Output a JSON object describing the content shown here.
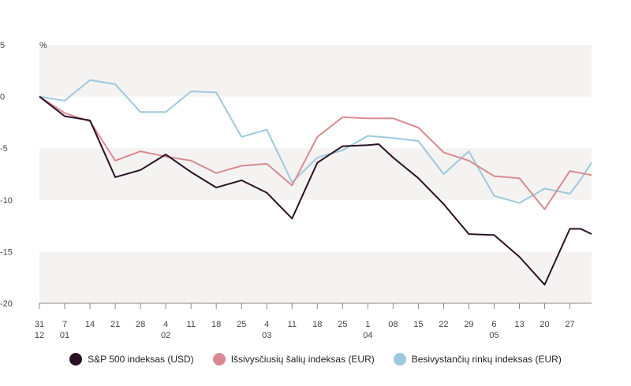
{
  "chart_data": {
    "type": "line",
    "unit_label": "%",
    "ylim": [
      -20,
      5
    ],
    "yticks": [
      5,
      0,
      -5,
      -10,
      -15,
      -20
    ],
    "ytick_labels": [
      "5",
      "0",
      "-5",
      "-10",
      "-15",
      "-20"
    ],
    "x_dates": [
      "2024-12-31",
      "2025-01-07",
      "2025-01-14",
      "2025-01-21",
      "2025-01-28",
      "2025-02-04",
      "2025-02-11",
      "2025-02-18",
      "2025-02-25",
      "2025-03-04",
      "2025-03-11",
      "2025-03-18",
      "2025-03-25",
      "2025-04-01",
      "2025-04-08",
      "2025-04-15",
      "2025-04-22",
      "2025-04-29",
      "2025-05-06",
      "2025-05-13",
      "2025-05-20",
      "2025-05-27",
      "2025-06-02"
    ],
    "xtick_labels": [
      {
        "day": "31",
        "month": "12"
      },
      {
        "day": "7",
        "month": "01"
      },
      {
        "day": "14",
        "month": ""
      },
      {
        "day": "21",
        "month": ""
      },
      {
        "day": "28",
        "month": ""
      },
      {
        "day": "4",
        "month": "02"
      },
      {
        "day": "11",
        "month": ""
      },
      {
        "day": "18",
        "month": ""
      },
      {
        "day": "25",
        "month": ""
      },
      {
        "day": "4",
        "month": "03"
      },
      {
        "day": "11",
        "month": ""
      },
      {
        "day": "18",
        "month": ""
      },
      {
        "day": "25",
        "month": ""
      },
      {
        "day": "1",
        "month": "04"
      },
      {
        "day": "08",
        "month": ""
      },
      {
        "day": "15",
        "month": ""
      },
      {
        "day": "22",
        "month": ""
      },
      {
        "day": "29",
        "month": ""
      },
      {
        "day": "6",
        "month": "05"
      },
      {
        "day": "13",
        "month": ""
      },
      {
        "day": "20",
        "month": ""
      },
      {
        "day": "27",
        "month": ""
      }
    ],
    "series": [
      {
        "name": "S&P 500 indeksas (USD)",
        "color": "#2a0f24",
        "x": [
          "2024-12-31",
          "2025-01-07",
          "2025-01-14",
          "2025-01-21",
          "2025-01-28",
          "2025-02-04",
          "2025-02-11",
          "2025-02-18",
          "2025-02-25",
          "2025-03-04",
          "2025-03-11",
          "2025-03-18",
          "2025-03-25",
          "2025-04-01",
          "2025-04-04",
          "2025-04-08",
          "2025-04-15",
          "2025-04-22",
          "2025-04-29",
          "2025-05-06",
          "2025-05-13",
          "2025-05-20",
          "2025-05-27",
          "2025-05-30",
          "2025-06-02"
        ],
        "values": [
          0,
          -1.9,
          -2.3,
          -7.8,
          -7.1,
          -5.6,
          -7.3,
          -8.8,
          -8.1,
          -9.3,
          -11.8,
          -6.4,
          -4.8,
          -4.7,
          -4.6,
          -5.9,
          -7.9,
          -10.4,
          -13.3,
          -13.4,
          -15.5,
          -18.2,
          -12.8,
          -12.8,
          -13.3
        ]
      },
      {
        "name": "Išsivysčiusių šalių indeksas (EUR)",
        "color": "#d98a90",
        "x": [
          "2024-12-31",
          "2025-01-07",
          "2025-01-14",
          "2025-01-21",
          "2025-01-28",
          "2025-02-04",
          "2025-02-11",
          "2025-02-18",
          "2025-02-25",
          "2025-03-04",
          "2025-03-11",
          "2025-03-18",
          "2025-03-25",
          "2025-04-01",
          "2025-04-08",
          "2025-04-15",
          "2025-04-22",
          "2025-04-29",
          "2025-05-06",
          "2025-05-13",
          "2025-05-20",
          "2025-05-27",
          "2025-06-02"
        ],
        "values": [
          0,
          -1.6,
          -2.4,
          -6.2,
          -5.3,
          -5.8,
          -6.2,
          -7.4,
          -6.7,
          -6.5,
          -8.6,
          -3.9,
          -2.0,
          -2.1,
          -2.1,
          -3.0,
          -5.4,
          -6.2,
          -7.7,
          -7.9,
          -10.9,
          -7.2,
          -7.6
        ]
      },
      {
        "name": "Besivystančių rinkų indeksas (EUR)",
        "color": "#9cc9de",
        "x": [
          "2024-12-31",
          "2025-01-07",
          "2025-01-14",
          "2025-01-21",
          "2025-01-28",
          "2025-02-04",
          "2025-02-11",
          "2025-02-18",
          "2025-02-25",
          "2025-03-04",
          "2025-03-11",
          "2025-03-18",
          "2025-03-25",
          "2025-04-01",
          "2025-04-08",
          "2025-04-15",
          "2025-04-22",
          "2025-04-29",
          "2025-05-06",
          "2025-05-13",
          "2025-05-20",
          "2025-05-27",
          "2025-05-30",
          "2025-06-02"
        ],
        "values": [
          0,
          -0.4,
          1.6,
          1.2,
          -1.5,
          -1.5,
          0.5,
          0.4,
          -3.9,
          -3.2,
          -8.3,
          -5.9,
          -5.2,
          -3.8,
          -4.0,
          -4.3,
          -7.5,
          -5.3,
          -9.6,
          -10.3,
          -8.9,
          -9.4,
          -8.0,
          -6.4
        ]
      }
    ],
    "bands": [
      [
        5,
        0
      ],
      [
        -5,
        -10
      ],
      [
        -15,
        -20
      ]
    ],
    "band_color": "#f4f3f1",
    "grid": false,
    "legend_position": "bottom-center"
  }
}
